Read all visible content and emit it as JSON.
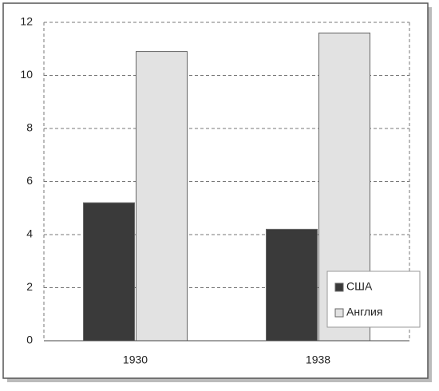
{
  "chart_data": {
    "type": "bar",
    "categories": [
      "1930",
      "1938"
    ],
    "series": [
      {
        "name": "США",
        "color": "#3a3a3a",
        "values": [
          5.2,
          4.2
        ]
      },
      {
        "name": "Англия",
        "color": "#e2e2e2",
        "values": [
          10.9,
          11.6
        ]
      }
    ],
    "ylim": [
      0,
      12
    ],
    "yticks": [
      0,
      2,
      4,
      6,
      8,
      10,
      12
    ],
    "grid": true,
    "legend": "lower-right"
  }
}
